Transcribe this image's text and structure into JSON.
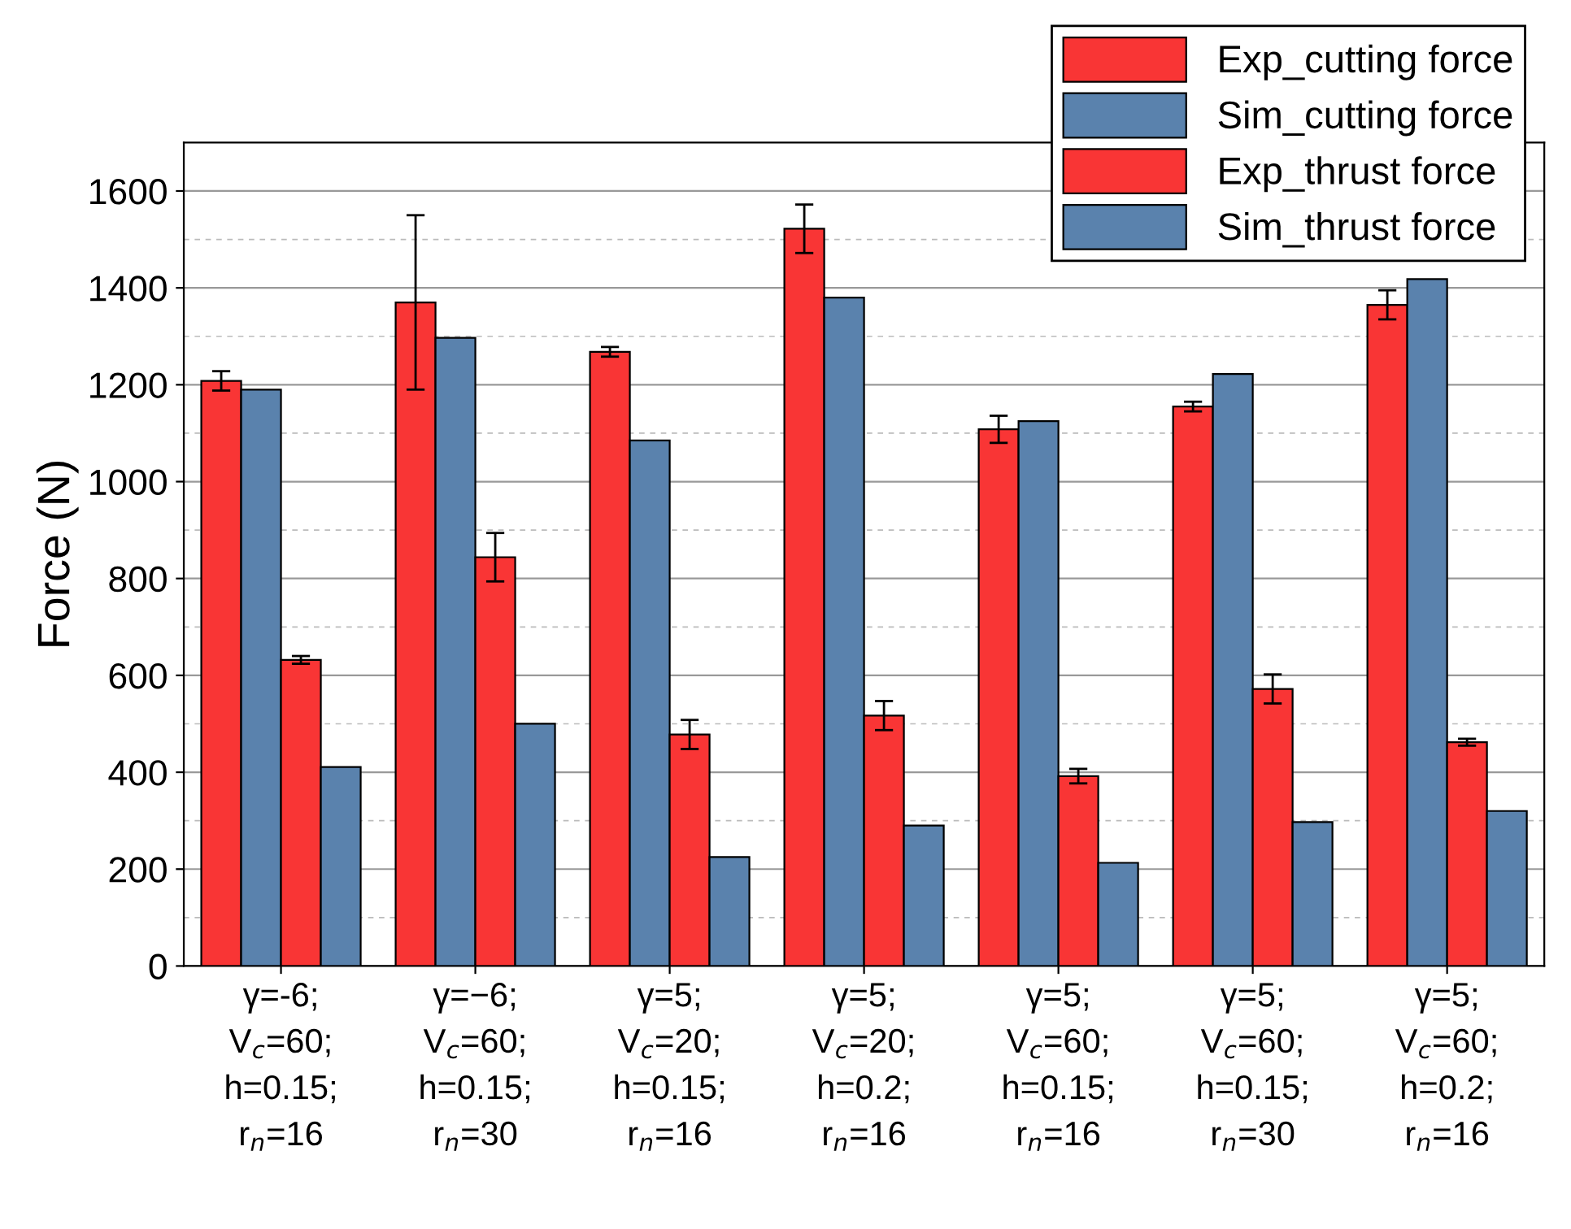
{
  "chart_data": {
    "type": "bar",
    "ylabel": "Force (N)",
    "categories": [
      "γ=-6;\nV$_{c}$=60;\nh=0.15;\nr$_{n}$=16",
      "γ=−6;\nV$_{c}$=60;\nh=0.15;\nr$_{n}$=30",
      "γ=5;\nV$_{c}$=20;\nh=0.15;\nr$_{n}$=16",
      "γ=5;\nV$_{c}$=20;\nh=0.2;\nr$_{n}$=16",
      "γ=5;\nV$_{c}$=60;\nh=0.15;\nr$_{n}$=16",
      "γ=5;\nV$_{c}$=60;\nh=0.15;\nr$_{n}$=30",
      "γ=5;\nV$_{c}$=60;\nh=0.2;\nr$_{n}$=16"
    ],
    "series": [
      {
        "name": "Exp_cutting force",
        "color": "#f93535",
        "values": [
          1208,
          1370,
          1268,
          1522,
          1108,
          1155,
          1365
        ],
        "errors": [
          20,
          180,
          10,
          50,
          28,
          10,
          30
        ]
      },
      {
        "name": "Sim_cutting force",
        "color": "#5a82ad",
        "values": [
          1190,
          1297,
          1085,
          1380,
          1125,
          1222,
          1418
        ]
      },
      {
        "name": "Exp_thrust force",
        "color": "#f93535",
        "values": [
          632,
          844,
          478,
          517,
          392,
          572,
          462
        ],
        "errors": [
          8,
          50,
          30,
          30,
          15,
          30,
          7
        ]
      },
      {
        "name": "Sim_thrust force",
        "color": "#5a82ad",
        "values": [
          411,
          500,
          225,
          290,
          213,
          297,
          320
        ]
      }
    ],
    "ylim": [
      0,
      1700
    ],
    "yticks": [
      0,
      200,
      400,
      600,
      800,
      1000,
      1200,
      1400,
      1600
    ],
    "grid": "y",
    "legend": "top right"
  }
}
